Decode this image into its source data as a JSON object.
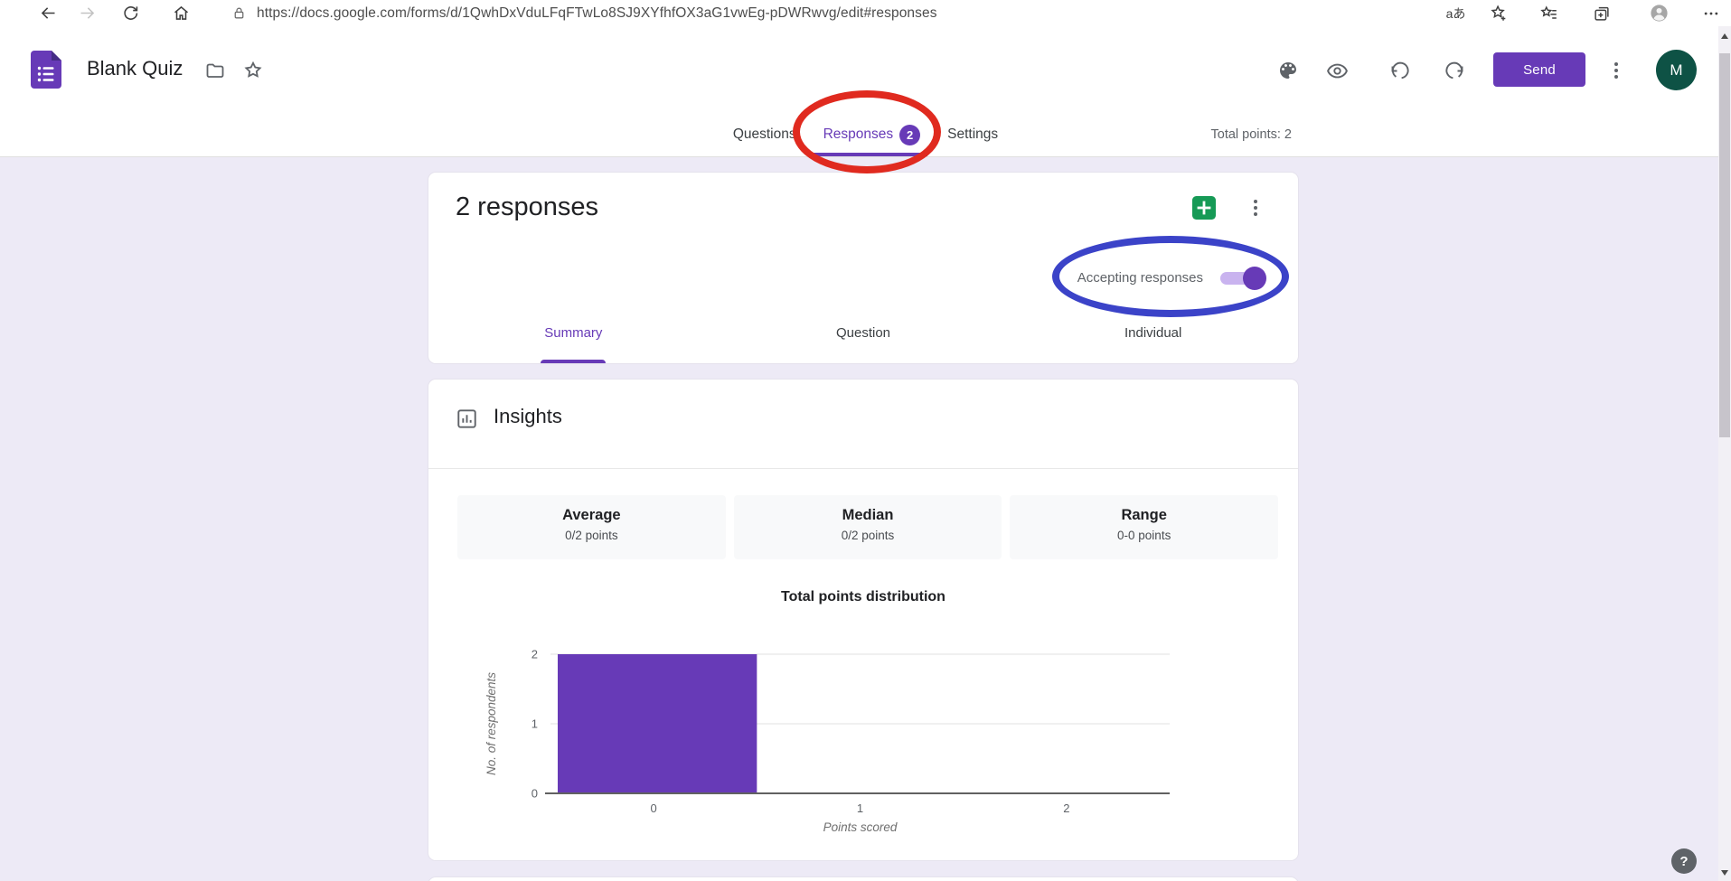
{
  "browser": {
    "url": "https://docs.google.com/forms/d/1QwhDxVduLFqFTwLo8SJ9XYfhfOX3aG1vwEg-pDWRwvg/edit#responses",
    "translate_glyph": "aあ"
  },
  "header": {
    "title": "Blank Quiz",
    "send_label": "Send",
    "avatar_initial": "M"
  },
  "tab_bar": {
    "tabs": [
      {
        "label": "Questions"
      },
      {
        "label": "Responses",
        "badge": "2",
        "active": true
      },
      {
        "label": "Settings"
      }
    ],
    "total_points": "Total points: 2"
  },
  "responses_card": {
    "title": "2 responses",
    "accepting_label": "Accepting responses",
    "toggle_state": "on",
    "subtabs": [
      "Summary",
      "Question",
      "Individual"
    ]
  },
  "insights_card": {
    "title": "Insights",
    "stats": [
      {
        "label": "Average",
        "value": "0/2 points"
      },
      {
        "label": "Median",
        "value": "0/2 points"
      },
      {
        "label": "Range",
        "value": "0-0 points"
      }
    ]
  },
  "chart_data": {
    "type": "bar",
    "title": "Total points distribution",
    "categories": [
      "0",
      "1",
      "2"
    ],
    "values": [
      2,
      0,
      0
    ],
    "xlabel": "Points scored",
    "ylabel": "No. of respondents",
    "yticks": [
      0,
      1,
      2
    ],
    "ylim": [
      0,
      2
    ],
    "grid": true,
    "legend": "none",
    "bar_color": "#673ab7"
  },
  "help_label": "?",
  "annotations": {
    "red_ellipse": "highlight around Responses tab",
    "blue_ellipse": "highlight around Accepting responses toggle"
  },
  "colors": {
    "accent_purple": "#673ab7",
    "page_bg": "#edeaf6",
    "annotation_red": "#e02a1f",
    "annotation_blue": "#3b43c8",
    "sheets_green": "#169a56",
    "avatar_green": "#0e5245"
  }
}
